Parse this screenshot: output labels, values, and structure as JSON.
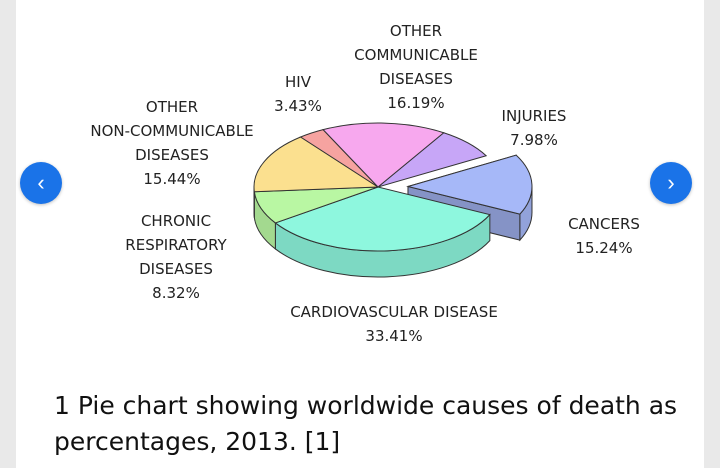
{
  "chart_data": {
    "type": "pie",
    "style": "3d-exploded",
    "title": "",
    "slices": [
      {
        "name": "INJURIES",
        "label_lines": [
          "INJURIES"
        ],
        "percent_text": "7.98%",
        "value": 7.98,
        "color": "#c7a6f7"
      },
      {
        "name": "CANCERS",
        "label_lines": [
          "CANCERS"
        ],
        "percent_text": "15.24%",
        "value": 15.24,
        "color": "#a6b8f8",
        "exploded": true
      },
      {
        "name": "CARDIOVASCULAR DISEASE",
        "label_lines": [
          "CARDIOVASCULAR DISEASE"
        ],
        "percent_text": "33.41%",
        "value": 33.41,
        "color": "#8ef7de"
      },
      {
        "name": "CHRONIC RESPIRATORY DISEASES",
        "label_lines": [
          "CHRONIC",
          "RESPIRATORY",
          "DISEASES"
        ],
        "percent_text": "8.32%",
        "value": 8.32,
        "color": "#b9f7a3"
      },
      {
        "name": "OTHER NON-COMMUNICABLE DISEASES",
        "label_lines": [
          "OTHER",
          "NON-COMMUNICABLE",
          "DISEASES"
        ],
        "percent_text": "15.44%",
        "value": 15.44,
        "color": "#fbe08f"
      },
      {
        "name": "HIV",
        "label_lines": [
          "HIV"
        ],
        "percent_text": "3.43%",
        "value": 3.43,
        "color": "#f6a3a0"
      },
      {
        "name": "OTHER COMMUNICABLE DISEASES",
        "label_lines": [
          "OTHER",
          "COMMUNICABLE",
          "DISEASES"
        ],
        "percent_text": "16.19%",
        "value": 16.19,
        "color": "#f7a8ee"
      }
    ]
  },
  "caption": "1 Pie chart showing worldwide causes of death as percentages, 2013. [1]",
  "navigation": {
    "prev_icon": "‹",
    "next_icon": "›"
  },
  "colors": {
    "accent": "#1a73e8",
    "outline": "#333333"
  }
}
